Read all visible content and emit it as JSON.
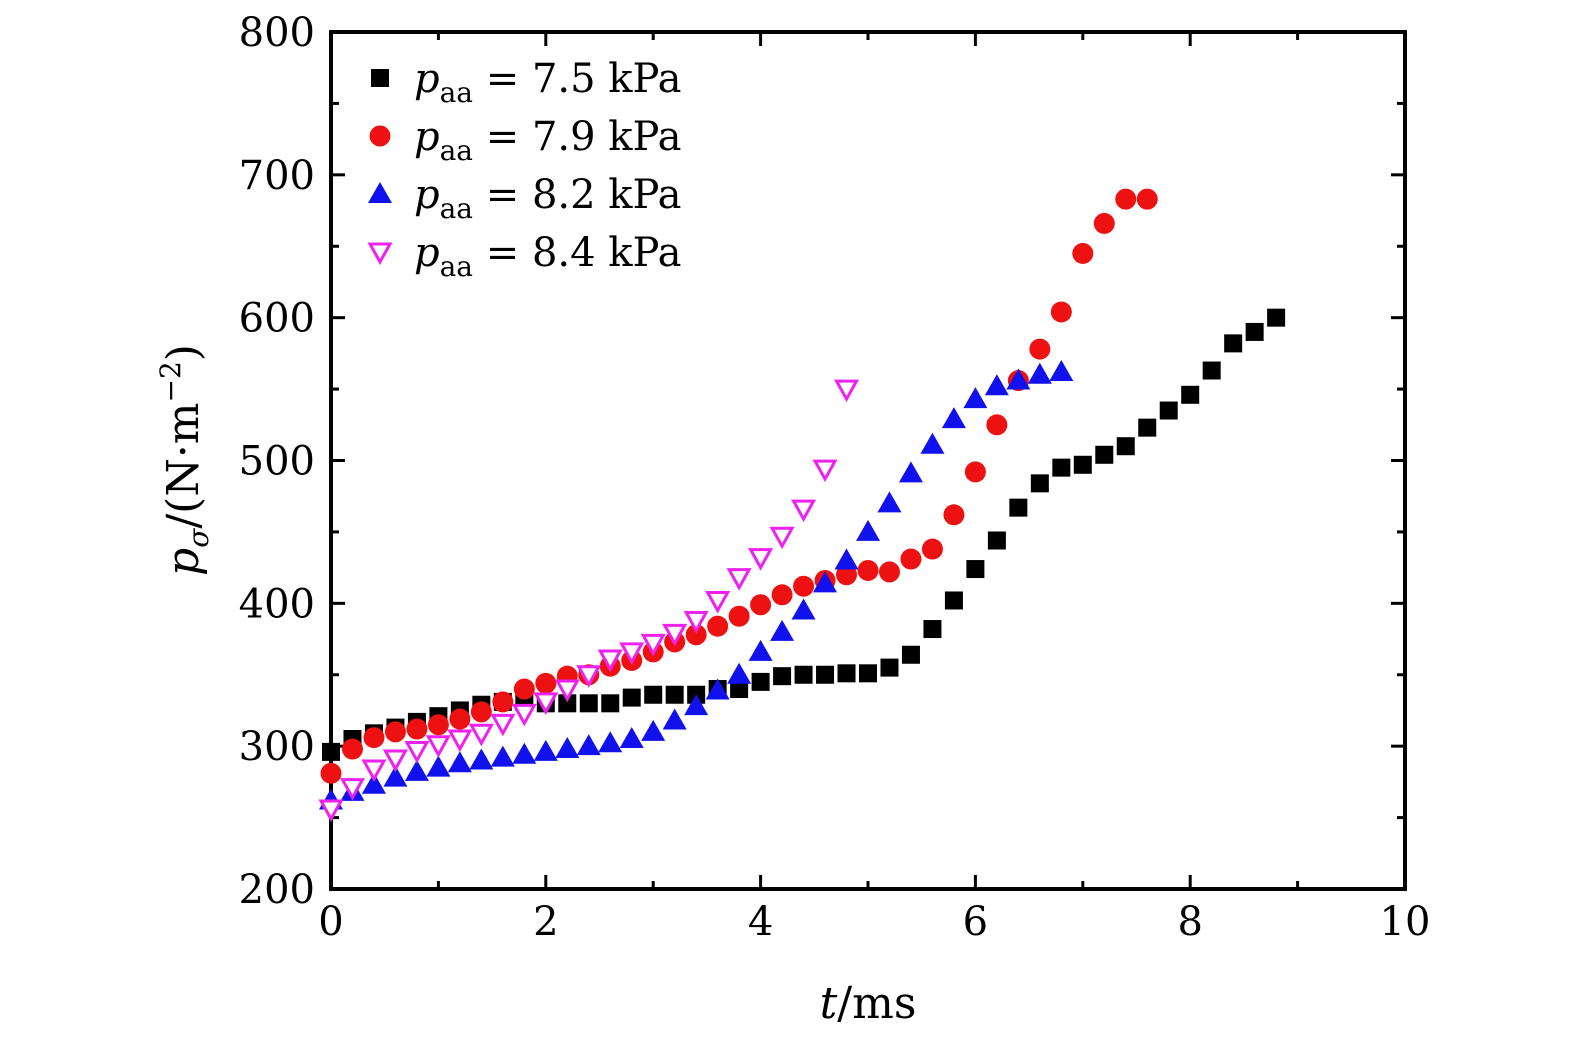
{
  "chart_data": {
    "type": "scatter",
    "xlabel": {
      "italic": "t",
      "rest": "/ms"
    },
    "ylabel": {
      "italic": "p",
      "subscript": "σ",
      "rest": "/(N·m",
      "superscript": "−2",
      "close": ")"
    },
    "xlim": [
      0,
      10
    ],
    "ylim": [
      200,
      800
    ],
    "xticks": [
      0,
      2,
      4,
      6,
      8,
      10
    ],
    "yticks": [
      200,
      300,
      400,
      500,
      600,
      700,
      800
    ],
    "grid": false,
    "legend_position": "top-left",
    "series": [
      {
        "name": "p_aa = 7.5 kPa",
        "label": {
          "italic": "p",
          "subscript": "aa",
          "rest": " = 7.5 kPa"
        },
        "marker": "square",
        "color": "#000000",
        "x": [
          0,
          0.2,
          0.4,
          0.6,
          0.8,
          1.0,
          1.2,
          1.4,
          1.6,
          1.8,
          2.0,
          2.2,
          2.4,
          2.6,
          2.8,
          3.0,
          3.2,
          3.4,
          3.6,
          3.8,
          4.0,
          4.2,
          4.4,
          4.6,
          4.8,
          5.0,
          5.2,
          5.4,
          5.6,
          5.8,
          6.0,
          6.2,
          6.4,
          6.6,
          6.8,
          7.0,
          7.2,
          7.4,
          7.6,
          7.8,
          8.0,
          8.2,
          8.4,
          8.6,
          8.8
        ],
        "y": [
          296,
          305,
          309,
          313,
          317,
          321,
          325,
          329,
          331,
          331,
          330,
          330,
          330,
          330,
          334,
          336,
          336,
          336,
          340,
          340,
          345,
          349,
          350,
          350,
          351,
          351,
          355,
          364,
          382,
          402,
          424,
          444,
          467,
          484,
          495,
          497,
          504,
          510,
          523,
          535,
          546,
          563,
          582,
          590,
          600
        ]
      },
      {
        "name": "p_aa = 7.9 kPa",
        "label": {
          "italic": "p",
          "subscript": "aa",
          "rest": " = 7.9 kPa"
        },
        "marker": "circle",
        "color": "#ee1111",
        "x": [
          0,
          0.2,
          0.4,
          0.6,
          0.8,
          1.0,
          1.2,
          1.4,
          1.6,
          1.8,
          2.0,
          2.2,
          2.4,
          2.6,
          2.8,
          3.0,
          3.2,
          3.4,
          3.6,
          3.8,
          4.0,
          4.2,
          4.4,
          4.6,
          4.8,
          5.0,
          5.2,
          5.4,
          5.6,
          5.8,
          6.0,
          6.2,
          6.4,
          6.6,
          6.8,
          7.0,
          7.2,
          7.4,
          7.6
        ],
        "y": [
          281,
          298,
          306,
          310,
          312,
          315,
          319,
          324,
          331,
          340,
          344,
          349,
          350,
          356,
          360,
          366,
          373,
          378,
          384,
          391,
          399,
          406,
          412,
          416,
          420,
          423,
          422,
          431,
          438,
          462,
          492,
          525,
          556,
          578,
          604,
          645,
          666,
          683,
          683
        ]
      },
      {
        "name": "p_aa = 8.2 kPa",
        "label": {
          "italic": "p",
          "subscript": "aa",
          "rest": " = 8.2 kPa"
        },
        "marker": "triangle-up",
        "color": "#1111ee",
        "x": [
          0,
          0.2,
          0.4,
          0.6,
          0.8,
          1.0,
          1.2,
          1.4,
          1.6,
          1.8,
          2.0,
          2.2,
          2.4,
          2.6,
          2.8,
          3.0,
          3.2,
          3.4,
          3.6,
          3.8,
          4.0,
          4.2,
          4.4,
          4.6,
          4.8,
          5.0,
          5.2,
          5.4,
          5.6,
          5.8,
          6.0,
          6.2,
          6.4,
          6.6,
          6.8
        ],
        "y": [
          262,
          268,
          273,
          278,
          282,
          285,
          288,
          290,
          292,
          294,
          296,
          298,
          300,
          302,
          305,
          310,
          318,
          328,
          339,
          350,
          366,
          380,
          395,
          414,
          430,
          450,
          470,
          491,
          511,
          529,
          543,
          552,
          556,
          560,
          562
        ]
      },
      {
        "name": "p_aa = 8.4 kPa",
        "label": {
          "italic": "p",
          "subscript": "aa",
          "rest": " = 8.4 kPa"
        },
        "marker": "triangle-down-open",
        "color": "#ee22ee",
        "x": [
          0,
          0.2,
          0.4,
          0.6,
          0.8,
          1.0,
          1.2,
          1.4,
          1.6,
          1.8,
          2.0,
          2.2,
          2.4,
          2.6,
          2.8,
          3.0,
          3.2,
          3.4,
          3.6,
          3.8,
          4.0,
          4.2,
          4.4,
          4.6,
          4.8
        ],
        "y": [
          256,
          271,
          284,
          291,
          297,
          301,
          305,
          309,
          316,
          323,
          331,
          340,
          350,
          361,
          366,
          372,
          379,
          388,
          402,
          418,
          432,
          447,
          466,
          494,
          550
        ]
      }
    ]
  }
}
